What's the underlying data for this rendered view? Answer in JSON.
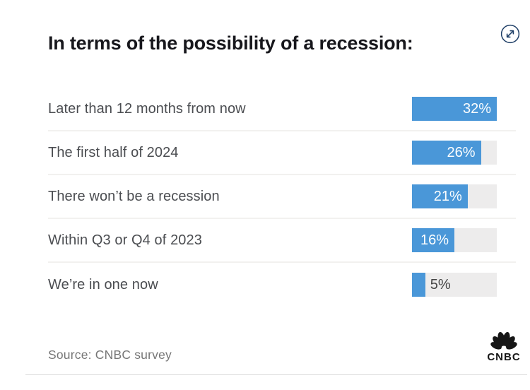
{
  "title": "In terms of the possibility of a recession:",
  "controls": {
    "expand_button": "expand"
  },
  "chart_data": {
    "type": "bar",
    "orientation": "horizontal",
    "title": "In terms of the possibility of a recession:",
    "categories": [
      "Later than 12 months from now",
      "The first half of 2024",
      "There won’t be a recession",
      "Within Q3 or Q4 of 2023",
      "We’re in one now"
    ],
    "values": [
      32,
      26,
      21,
      16,
      5
    ],
    "value_labels": [
      "32%",
      "26%",
      "21%",
      "16%",
      "5%"
    ],
    "unit": "%",
    "scale_max": 32,
    "legend": false,
    "grid": false,
    "value_label_position": "inside-right, outside for smallest bar"
  },
  "footer": {
    "source": "Source: CNBC survey",
    "logo_text": "CNBC"
  },
  "colors": {
    "bar": "#4a97d8",
    "track": "#edecec",
    "title_text": "#17171c",
    "label_text": "#4b4d51",
    "value_in_bar": "#fbfdfe",
    "value_outside_bar": "#454545",
    "source_text": "#757575",
    "divider": "#f2f1ef",
    "bottom_rule": "#d9d9d9",
    "icon": "#1e3e66",
    "logo": "#161616"
  }
}
